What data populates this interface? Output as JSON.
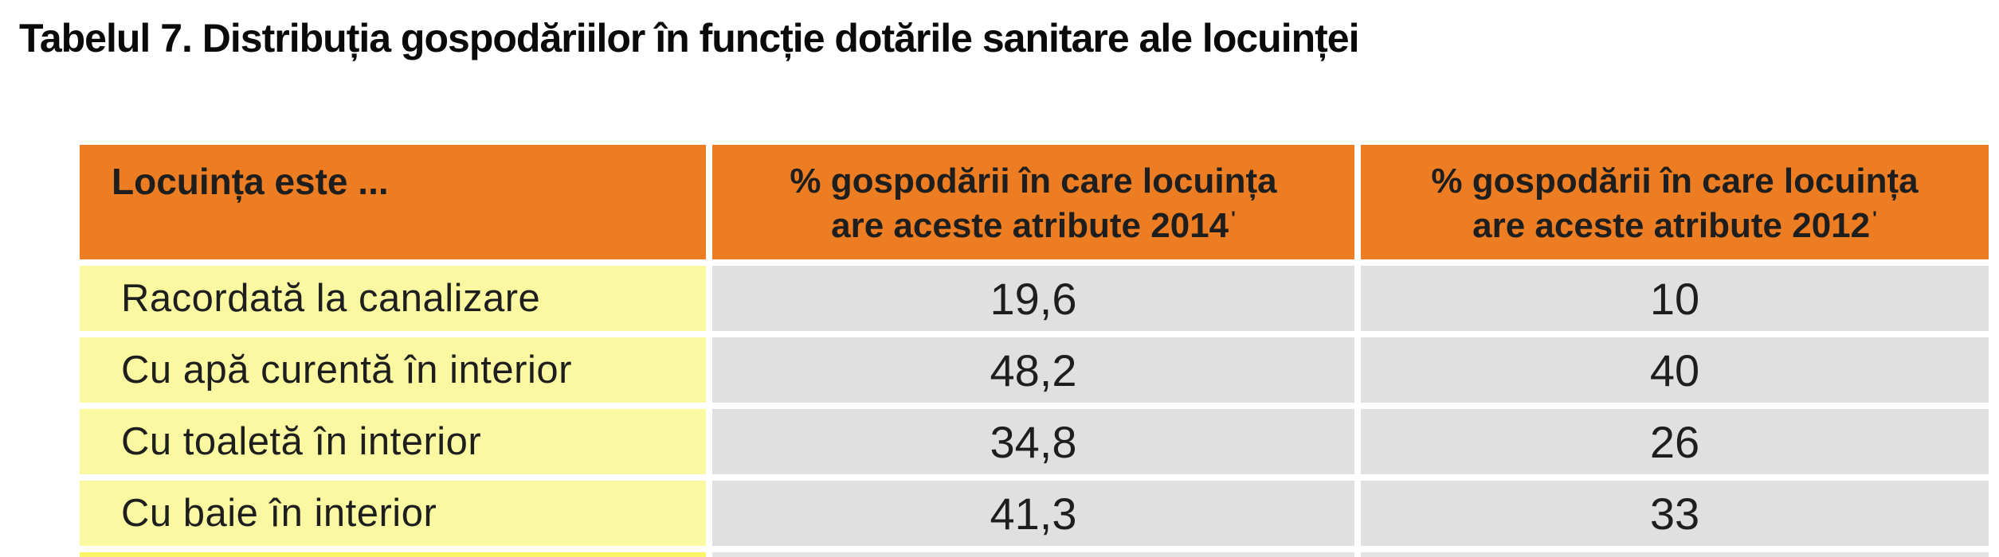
{
  "title": "Tabelul 7. Distribuția gospodăriilor în funcție dotările sanitare ale locuinței",
  "table": {
    "colors": {
      "header_bg": "#ED7D23",
      "label_bg": "#FAF8A0",
      "value_bg": "#E0E0E0",
      "text": "#1E1E1E"
    },
    "header": {
      "col1": "Locuința este ...",
      "col2_line1": "% gospodării în care locuința",
      "col2_line2": "are aceste atribute 2014",
      "col2_mark": "'",
      "col3_line1": "% gospodării în care locuința",
      "col3_line2": "are aceste atribute 2012",
      "col3_mark": "'"
    },
    "rows": [
      {
        "label": "Racordată la canalizare",
        "v2014": "19,6",
        "v2012": "10"
      },
      {
        "label": "Cu apă curentă în interior",
        "v2014": "48,2",
        "v2012": "40"
      },
      {
        "label": "Cu toaletă în interior",
        "v2014": "34,8",
        "v2012": "26"
      },
      {
        "label": "Cu baie în interior",
        "v2014": "41,3",
        "v2012": "33"
      }
    ]
  },
  "chart_data": {
    "type": "table",
    "title": "Tabelul 7. Distribuția gospodăriilor în funcție dotările sanitare ale locuinței",
    "columns": [
      "Locuința este ...",
      "% gospodării în care locuința are aceste atribute 2014",
      "% gospodării în care locuința are aceste atribute 2012"
    ],
    "rows": [
      [
        "Racordată la canalizare",
        "19,6",
        "10"
      ],
      [
        "Cu apă curentă în interior",
        "48,2",
        "40"
      ],
      [
        "Cu toaletă în interior",
        "34,8",
        "26"
      ],
      [
        "Cu baie în interior",
        "41,3",
        "33"
      ]
    ]
  }
}
